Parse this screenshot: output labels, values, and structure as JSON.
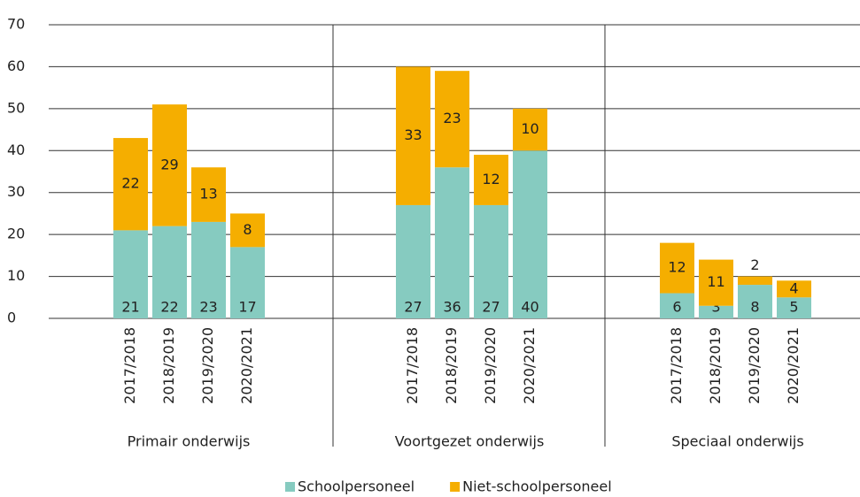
{
  "chart_data": {
    "type": "stacked-bar",
    "categories": [
      "2017/2018",
      "2018/2019",
      "2019/2020",
      "2020/2021",
      "2017/2018",
      "2018/2019",
      "2019/2020",
      "2020/2021",
      "2017/2018",
      "2018/2019",
      "2019/2020",
      "2020/2021"
    ],
    "groups": [
      "Primair onderwijs",
      "Voortgezet onderwijs",
      "Speciaal onderwijs"
    ],
    "series": [
      {
        "name": "Schoolpersoneel",
        "color": "#86cbc0",
        "values": [
          21,
          22,
          23,
          17,
          27,
          36,
          27,
          40,
          6,
          3,
          8,
          5
        ]
      },
      {
        "name": "Niet-schoolpersoneel",
        "color": "#f5ae00",
        "values": [
          22,
          29,
          13,
          8,
          33,
          23,
          12,
          10,
          12,
          11,
          2,
          4
        ]
      }
    ],
    "ylim": [
      0,
      70
    ],
    "yticks": [
      0,
      10,
      20,
      30,
      40,
      50,
      60,
      70
    ],
    "grid": true,
    "legend": "bottom"
  }
}
